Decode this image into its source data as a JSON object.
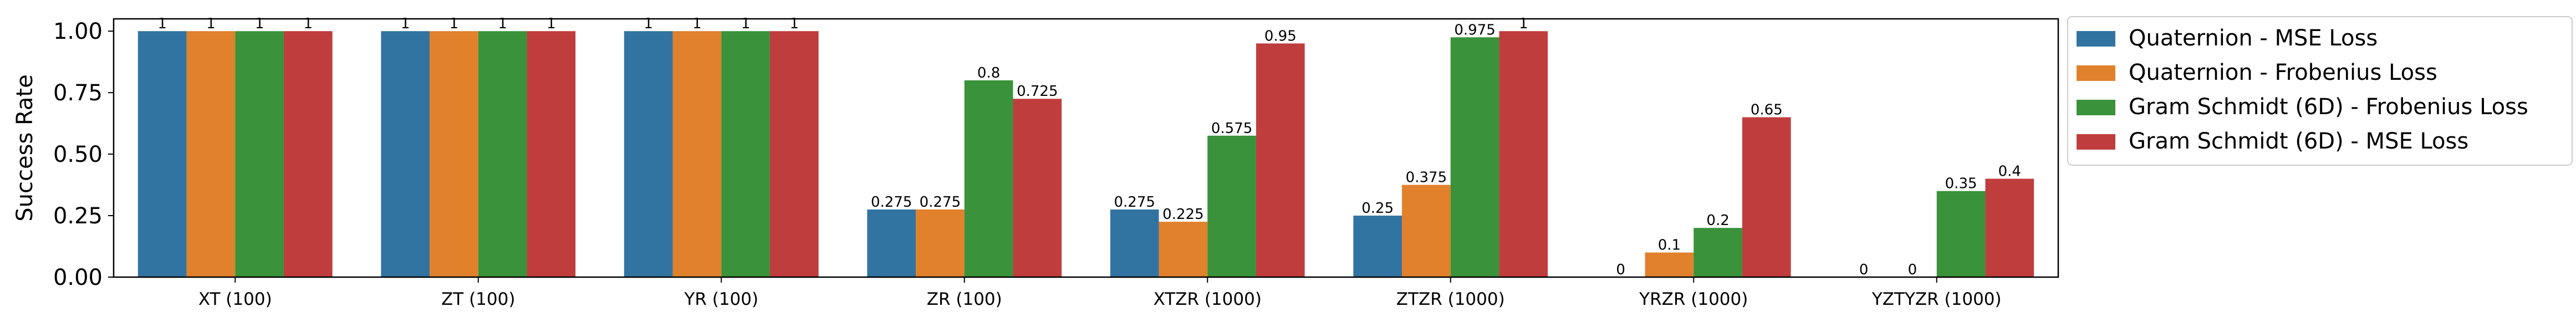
{
  "chart_data": {
    "type": "bar",
    "title": "",
    "xlabel": "",
    "ylabel": "Success Rate",
    "ylim": [
      0,
      1.05
    ],
    "yticks": [
      "0.00",
      "0.25",
      "0.50",
      "0.75",
      "1.00"
    ],
    "categories": [
      "XT (100)",
      "ZT (100)",
      "YR (100)",
      "ZR (100)",
      "XTZR (1000)",
      "ZTZR (1000)",
      "YRZR (1000)",
      "YZTYZR (1000)"
    ],
    "series": [
      {
        "name": "Quaternion - MSE Loss",
        "color": "#3274a1",
        "values": [
          1,
          1,
          1,
          0.275,
          0.275,
          0.25,
          0,
          0
        ],
        "labels": [
          "1",
          "1",
          "1",
          "0.275",
          "0.275",
          "0.25",
          "0",
          "0"
        ]
      },
      {
        "name": "Quaternion - Frobenius Loss",
        "color": "#e1812c",
        "values": [
          1,
          1,
          1,
          0.275,
          0.225,
          0.375,
          0.1,
          0
        ],
        "labels": [
          "1",
          "1",
          "1",
          "0.275",
          "0.225",
          "0.375",
          "0.1",
          "0"
        ]
      },
      {
        "name": "Gram Schmidt (6D) - Frobenius Loss",
        "color": "#3a923a",
        "values": [
          1,
          1,
          1,
          0.8,
          0.575,
          0.975,
          0.2,
          0.35
        ],
        "labels": [
          "1",
          "1",
          "1",
          "0.8",
          "0.575",
          "0.975",
          "0.2",
          "0.35"
        ]
      },
      {
        "name": "Gram Schmidt (6D) - MSE Loss",
        "color": "#c03d3e",
        "values": [
          1,
          1,
          1,
          0.725,
          0.95,
          1,
          0.65,
          0.4
        ],
        "labels": [
          "1",
          "1",
          "1",
          "0.725",
          "0.95",
          "1",
          "0.65",
          "0.4"
        ]
      }
    ],
    "legend_position": "outside-right-top",
    "grid": false
  }
}
